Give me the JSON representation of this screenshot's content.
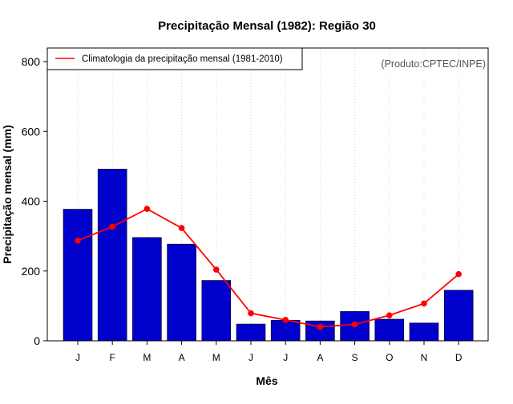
{
  "chart_data": {
    "type": "bar",
    "title": "Precipitação Mensal (1982): Região 30",
    "xlabel": "Mês",
    "ylabel": "Precipitação mensal (mm)",
    "ylim": [
      0,
      800
    ],
    "yticks": [
      0,
      200,
      400,
      600,
      800
    ],
    "grid": "vertical dotted",
    "categories": [
      "J",
      "F",
      "M",
      "A",
      "M",
      "J",
      "J",
      "A",
      "S",
      "O",
      "N",
      "D"
    ],
    "series": [
      {
        "name": "Precipitação mensal (1982)",
        "type": "bar",
        "color": "#0000CD",
        "values": [
          377,
          492,
          296,
          277,
          173,
          48,
          59,
          57,
          84,
          62,
          51,
          145
        ]
      },
      {
        "name": "Climatologia da precipitação mensal (1981-2010)",
        "type": "line",
        "color": "#FF0000",
        "values": [
          287,
          327,
          378,
          323,
          204,
          79,
          60,
          40,
          47,
          73,
          107,
          191
        ]
      }
    ],
    "legend": {
      "position": "top-left",
      "entries": [
        "Climatologia da precipitação mensal (1981-2010)"
      ]
    },
    "annotation": "(Produto:CPTEC/INPE)"
  }
}
